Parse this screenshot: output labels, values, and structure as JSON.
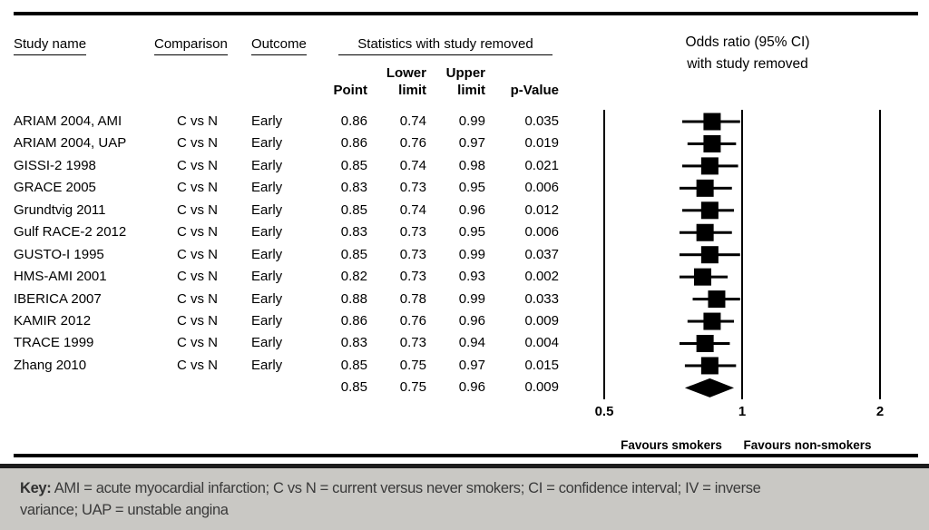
{
  "table": {
    "headers": {
      "study": "Study name",
      "comparison": "Comparison",
      "outcome": "Outcome",
      "stats_group": "Statistics with study removed",
      "point": "Point",
      "lower_line1": "Lower",
      "lower_line2": "limit",
      "upper_line1": "Upper",
      "upper_line2": "limit",
      "p_value": "p-Value"
    },
    "rows": [
      {
        "study": "ARIAM 2004, AMI",
        "comparison": "C vs N",
        "outcome": "Early",
        "point": "0.86",
        "lower": "0.74",
        "upper": "0.99",
        "p": "0.035"
      },
      {
        "study": "ARIAM 2004, UAP",
        "comparison": "C vs N",
        "outcome": "Early",
        "point": "0.86",
        "lower": "0.76",
        "upper": "0.97",
        "p": "0.019"
      },
      {
        "study": "GISSI-2 1998",
        "comparison": "C vs N",
        "outcome": "Early",
        "point": "0.85",
        "lower": "0.74",
        "upper": "0.98",
        "p": "0.021"
      },
      {
        "study": "GRACE 2005",
        "comparison": "C vs N",
        "outcome": "Early",
        "point": "0.83",
        "lower": "0.73",
        "upper": "0.95",
        "p": "0.006"
      },
      {
        "study": "Grundtvig 2011",
        "comparison": "C vs N",
        "outcome": "Early",
        "point": "0.85",
        "lower": "0.74",
        "upper": "0.96",
        "p": "0.012"
      },
      {
        "study": "Gulf RACE-2 2012",
        "comparison": "C vs N",
        "outcome": "Early",
        "point": "0.83",
        "lower": "0.73",
        "upper": "0.95",
        "p": "0.006"
      },
      {
        "study": "GUSTO-I 1995",
        "comparison": "C vs N",
        "outcome": "Early",
        "point": "0.85",
        "lower": "0.73",
        "upper": "0.99",
        "p": "0.037"
      },
      {
        "study": "HMS-AMI 2001",
        "comparison": "C vs N",
        "outcome": "Early",
        "point": "0.82",
        "lower": "0.73",
        "upper": "0.93",
        "p": "0.002"
      },
      {
        "study": "IBERICA 2007",
        "comparison": "C vs N",
        "outcome": "Early",
        "point": "0.88",
        "lower": "0.78",
        "upper": "0.99",
        "p": "0.033"
      },
      {
        "study": "KAMIR 2012",
        "comparison": "C vs N",
        "outcome": "Early",
        "point": "0.86",
        "lower": "0.76",
        "upper": "0.96",
        "p": "0.009"
      },
      {
        "study": "TRACE 1999",
        "comparison": "C vs N",
        "outcome": "Early",
        "point": "0.83",
        "lower": "0.73",
        "upper": "0.94",
        "p": "0.004"
      },
      {
        "study": "Zhang 2010",
        "comparison": "C vs N",
        "outcome": "Early",
        "point": "0.85",
        "lower": "0.75",
        "upper": "0.97",
        "p": "0.015"
      }
    ],
    "summary_row": {
      "study": "",
      "comparison": "",
      "outcome": "",
      "point": "0.85",
      "lower": "0.75",
      "upper": "0.96",
      "p": "0.009"
    }
  },
  "plot": {
    "title_line1": "Odds ratio (95% CI)",
    "title_line2": "with study removed"
  },
  "chart_data": {
    "type": "forest",
    "title": "Odds ratio (95% CI) with study removed",
    "x_scale": "log",
    "xlim": [
      0.5,
      2
    ],
    "x_ticks": [
      0.5,
      1,
      2
    ],
    "x_tick_labels": [
      "0.5",
      "1",
      "2"
    ],
    "reference_line": 1,
    "favours_left": "Favours smokers",
    "favours_right": "Favours non-smokers",
    "studies": [
      {
        "label": "ARIAM 2004, AMI",
        "or": 0.86,
        "lower": 0.74,
        "upper": 0.99,
        "p": 0.035
      },
      {
        "label": "ARIAM 2004, UAP",
        "or": 0.86,
        "lower": 0.76,
        "upper": 0.97,
        "p": 0.019
      },
      {
        "label": "GISSI-2 1998",
        "or": 0.85,
        "lower": 0.74,
        "upper": 0.98,
        "p": 0.021
      },
      {
        "label": "GRACE 2005",
        "or": 0.83,
        "lower": 0.73,
        "upper": 0.95,
        "p": 0.006
      },
      {
        "label": "Grundtvig 2011",
        "or": 0.85,
        "lower": 0.74,
        "upper": 0.96,
        "p": 0.012
      },
      {
        "label": "Gulf RACE-2 2012",
        "or": 0.83,
        "lower": 0.73,
        "upper": 0.95,
        "p": 0.006
      },
      {
        "label": "GUSTO-I 1995",
        "or": 0.85,
        "lower": 0.73,
        "upper": 0.99,
        "p": 0.037
      },
      {
        "label": "HMS-AMI 2001",
        "or": 0.82,
        "lower": 0.73,
        "upper": 0.93,
        "p": 0.002
      },
      {
        "label": "IBERICA 2007",
        "or": 0.88,
        "lower": 0.78,
        "upper": 0.99,
        "p": 0.033
      },
      {
        "label": "KAMIR 2012",
        "or": 0.86,
        "lower": 0.76,
        "upper": 0.96,
        "p": 0.009
      },
      {
        "label": "TRACE 1999",
        "or": 0.83,
        "lower": 0.73,
        "upper": 0.94,
        "p": 0.004
      },
      {
        "label": "Zhang 2010",
        "or": 0.85,
        "lower": 0.75,
        "upper": 0.97,
        "p": 0.015
      }
    ],
    "summary": {
      "or": 0.85,
      "lower": 0.75,
      "upper": 0.96,
      "p": 0.009
    }
  },
  "footer": {
    "key_label": "Key:",
    "line1": "AMI = acute myocardial infarction; C vs N = current versus never smokers; CI = confidence interval; IV = inverse",
    "line2": "variance; UAP = unstable angina"
  },
  "colors": {
    "ink": "#000000",
    "footer_bg": "#c9c8c4",
    "footer_border": "#1c1c1c",
    "footer_text": "#3a3a3a"
  }
}
